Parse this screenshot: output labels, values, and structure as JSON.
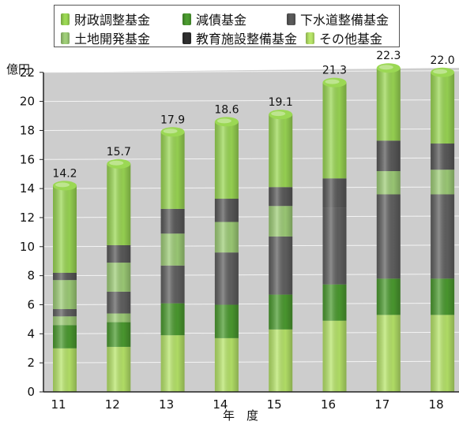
{
  "chart_data": {
    "type": "bar",
    "stacked": true,
    "title": "",
    "ylabel": "億円",
    "xlabel": "年　度",
    "ylim": [
      0,
      22
    ],
    "yticks": [
      0,
      2,
      4,
      6,
      8,
      10,
      12,
      14,
      16,
      18,
      20,
      22
    ],
    "grid": true,
    "legend_position": "top",
    "categories": [
      "11",
      "12",
      "13",
      "14",
      "15",
      "16",
      "17",
      "18"
    ],
    "totals": [
      14.2,
      15.7,
      17.9,
      18.6,
      19.1,
      21.3,
      22.3,
      22.0
    ],
    "series": [
      {
        "name": "その他基金",
        "color": "#b8e66a",
        "values": [
          3.0,
          3.1,
          3.9,
          3.7,
          4.3,
          4.9,
          5.3,
          5.3
        ]
      },
      {
        "name": "減債基金",
        "color": "#4c9c30",
        "values": [
          1.6,
          1.7,
          2.2,
          2.3,
          2.4,
          2.5,
          2.5,
          2.5
        ]
      },
      {
        "name": "土地開発基金",
        "color": "#9fce78",
        "values": [
          0.6,
          0.6,
          0.0,
          0.0,
          0.0,
          0.0,
          0.0,
          0.0
        ]
      },
      {
        "name": "下水道整備基金",
        "color": "#616161",
        "values": [
          0.5,
          1.5,
          2.6,
          3.6,
          4.0,
          5.3,
          5.8,
          5.8
        ]
      },
      {
        "name": "教育施設整備基金",
        "color": "#9fce78",
        "values": [
          2.0,
          2.0,
          2.2,
          2.1,
          2.1,
          0.0,
          1.6,
          1.7
        ]
      },
      {
        "name": "下水道整備基金",
        "color": "#5a5a5a",
        "values": [
          0.5,
          1.2,
          1.7,
          1.6,
          1.3,
          2.0,
          2.1,
          1.8
        ]
      },
      {
        "name": "財政調整基金",
        "color": "#9bd854",
        "values": [
          6.0,
          5.6,
          5.3,
          5.3,
          5.0,
          6.6,
          5.0,
          4.9
        ]
      }
    ]
  },
  "legend": [
    {
      "label": "財政調整基金",
      "color": "#9bd854"
    },
    {
      "label": "減債基金",
      "color": "#4c9c30"
    },
    {
      "label": "下水道整備基金",
      "color": "#5a5a5a"
    },
    {
      "label": "土地開発基金",
      "color": "#9fce78"
    },
    {
      "label": "教育施設整備基金",
      "color": "#2f2f2f"
    },
    {
      "label": "その他基金",
      "color": "#b8e66a"
    }
  ]
}
